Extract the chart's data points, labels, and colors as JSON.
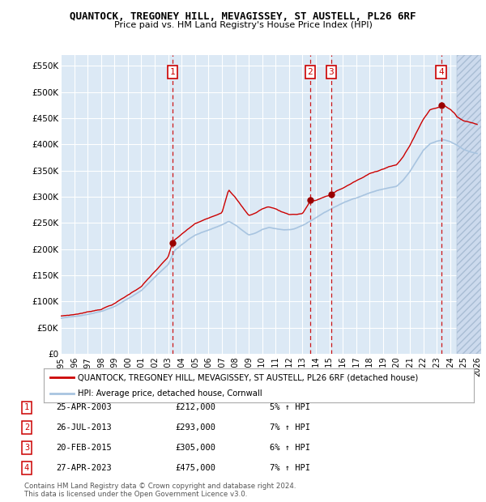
{
  "title": "QUANTOCK, TREGONEY HILL, MEVAGISSEY, ST AUSTELL, PL26 6RF",
  "subtitle": "Price paid vs. HM Land Registry's House Price Index (HPI)",
  "ylabel_ticks": [
    "£0",
    "£50K",
    "£100K",
    "£150K",
    "£200K",
    "£250K",
    "£300K",
    "£350K",
    "£400K",
    "£450K",
    "£500K",
    "£550K"
  ],
  "ylabel_values": [
    0,
    50000,
    100000,
    150000,
    200000,
    250000,
    300000,
    350000,
    400000,
    450000,
    500000,
    550000
  ],
  "ylim": [
    0,
    570000
  ],
  "xlim_start": 1995.3,
  "xlim_end": 2026.3,
  "xticks": [
    1995,
    1996,
    1997,
    1998,
    1999,
    2000,
    2001,
    2002,
    2003,
    2004,
    2005,
    2006,
    2007,
    2008,
    2009,
    2010,
    2011,
    2012,
    2013,
    2014,
    2015,
    2016,
    2017,
    2018,
    2019,
    2020,
    2021,
    2022,
    2023,
    2024,
    2025,
    2026
  ],
  "hpi_color": "#a8c4e0",
  "price_color": "#cc0000",
  "dot_color": "#990000",
  "bg_color": "#dce9f5",
  "grid_color": "#ffffff",
  "future_start": 2024.5,
  "legend_line1": "QUANTOCK, TREGONEY HILL, MEVAGISSEY, ST AUSTELL, PL26 6RF (detached house)",
  "legend_line2": "HPI: Average price, detached house, Cornwall",
  "sales": [
    {
      "num": 1,
      "year": 2003.32,
      "price": 212000,
      "date": "25-APR-2003",
      "pct": "5%",
      "dir": "↑"
    },
    {
      "num": 2,
      "year": 2013.57,
      "price": 293000,
      "date": "26-JUL-2013",
      "pct": "7%",
      "dir": "↑"
    },
    {
      "num": 3,
      "year": 2015.13,
      "price": 305000,
      "date": "20-FEB-2015",
      "pct": "6%",
      "dir": "↑"
    },
    {
      "num": 4,
      "year": 2023.32,
      "price": 475000,
      "date": "27-APR-2023",
      "pct": "7%",
      "dir": "↑"
    }
  ],
  "footnote": "Contains HM Land Registry data © Crown copyright and database right 2024.\nThis data is licensed under the Open Government Licence v3.0."
}
